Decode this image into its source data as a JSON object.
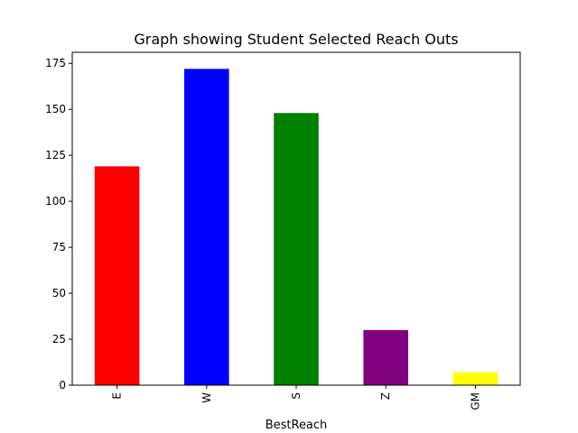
{
  "chart_data": {
    "type": "bar",
    "title": "Graph showing Student Selected Reach Outs",
    "xlabel": "BestReach",
    "ylabel": "",
    "categories": [
      "E",
      "W",
      "S",
      "Z",
      "GM"
    ],
    "values": [
      119,
      172,
      148,
      30,
      7
    ],
    "colors": [
      "#ff0000",
      "#0000ff",
      "#008000",
      "#800080",
      "#ffff00"
    ],
    "ylim": [
      0,
      181
    ],
    "yticks": [
      0,
      25,
      50,
      75,
      100,
      125,
      150,
      175
    ],
    "xtick_rotation": "vertical",
    "grid": false,
    "legend": "none"
  }
}
